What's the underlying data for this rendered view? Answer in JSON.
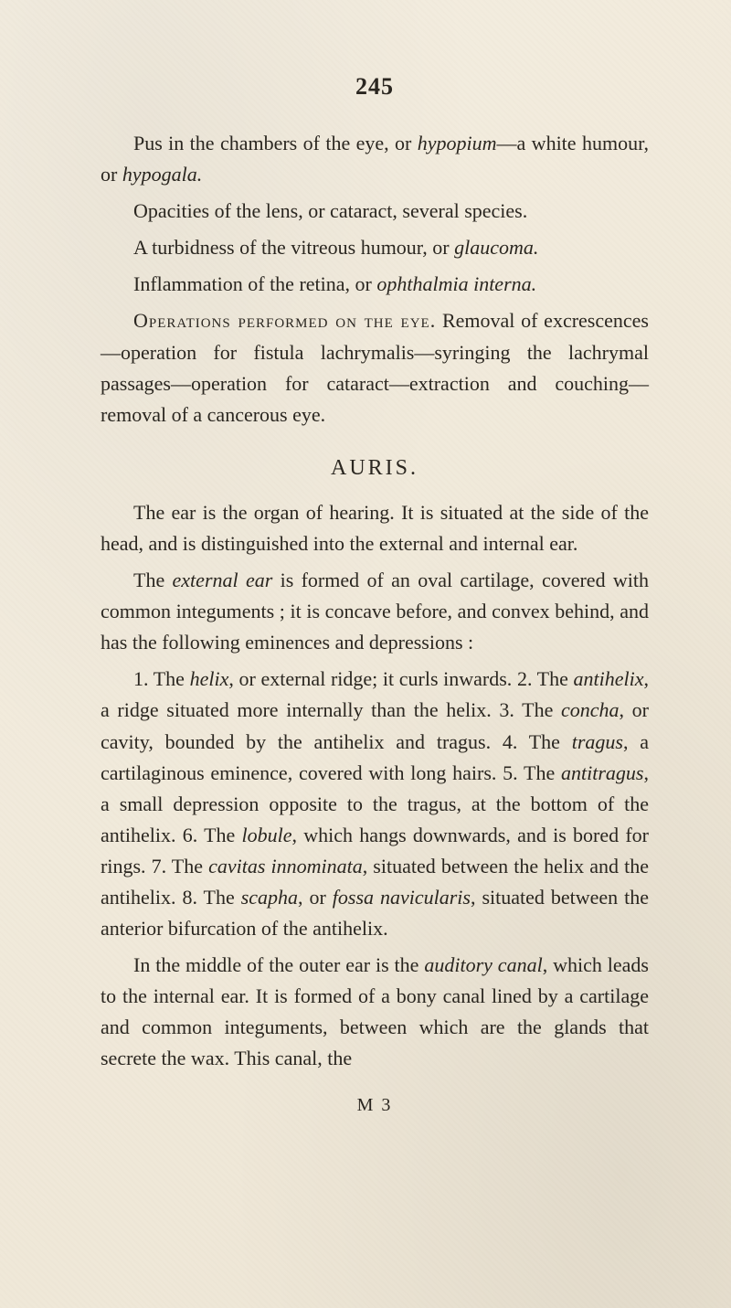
{
  "page": {
    "number": "245",
    "signature": "M 3",
    "background_color": "#f0e9da",
    "text_color": "#2a2620",
    "body_fontsize": 22,
    "heading_fontsize": 24,
    "pagenum_fontsize": 26,
    "line_height": 1.55
  },
  "paragraphs": {
    "p1a": "Pus in the chambers of the eye, or ",
    "p1b": "hypopium",
    "p1c": "—a white humour, or ",
    "p1d": "hypogala.",
    "p2": "Opacities of the lens, or cataract, several species.",
    "p3a": "A turbidness of the vitreous humour, or ",
    "p3b": "glaucoma.",
    "p4a": "Inflammation of the retina, or ",
    "p4b": "ophthalmia interna.",
    "p5a": "Operations performed on the eye.",
    "p5b": "  Removal of ex­crescences—operation for fistula lachrymalis—syringing the lachrymal passages—operation for cataract—extraction and couching—removal of a cancerous eye.",
    "heading_auris": "AURIS.",
    "p6": "The ear is the organ of hearing. It is situated at the side of the head, and is distinguished into the external and internal ear.",
    "p7a": "The ",
    "p7b": "external ear",
    "p7c": " is formed of an oval cartilage, covered with common integuments ; it is concave before, and con­vex behind, and has the following eminences and depres­sions :",
    "p8a": "1. The ",
    "p8b": "helix",
    "p8c": ", or external ridge; it curls inwards. 2. The ",
    "p8d": "antihelix",
    "p8e": ", a ridge situated more internally than the helix. 3. The ",
    "p8f": "concha",
    "p8g": ", or cavity, bounded by the antihelix and tragus. 4. The ",
    "p8h": "tragus",
    "p8i": ", a cartilaginous eminence, covered with long hairs. 5. The ",
    "p8j": "antitragus",
    "p8k": ", a small depression op­posite to the tragus, at the bottom of the antihelix. 6. The ",
    "p8l": "lobule",
    "p8m": ", which hangs downwards, and is bored for rings. 7. The ",
    "p8n": "cavitas innominata",
    "p8o": ", situated between the helix and the antihelix. 8. The ",
    "p8p": "scapha",
    "p8q": ", or ",
    "p8r": "fossa navicularis",
    "p8s": ", situated between the anterior bifurcation of the antihelix.",
    "p9a": "In the middle of the outer ear is the ",
    "p9b": "auditory canal",
    "p9c": ", which leads to the internal ear. It is formed of a bony ca­nal lined by a cartilage and common integuments, between which are the glands that secrete the wax. This canal, the"
  }
}
